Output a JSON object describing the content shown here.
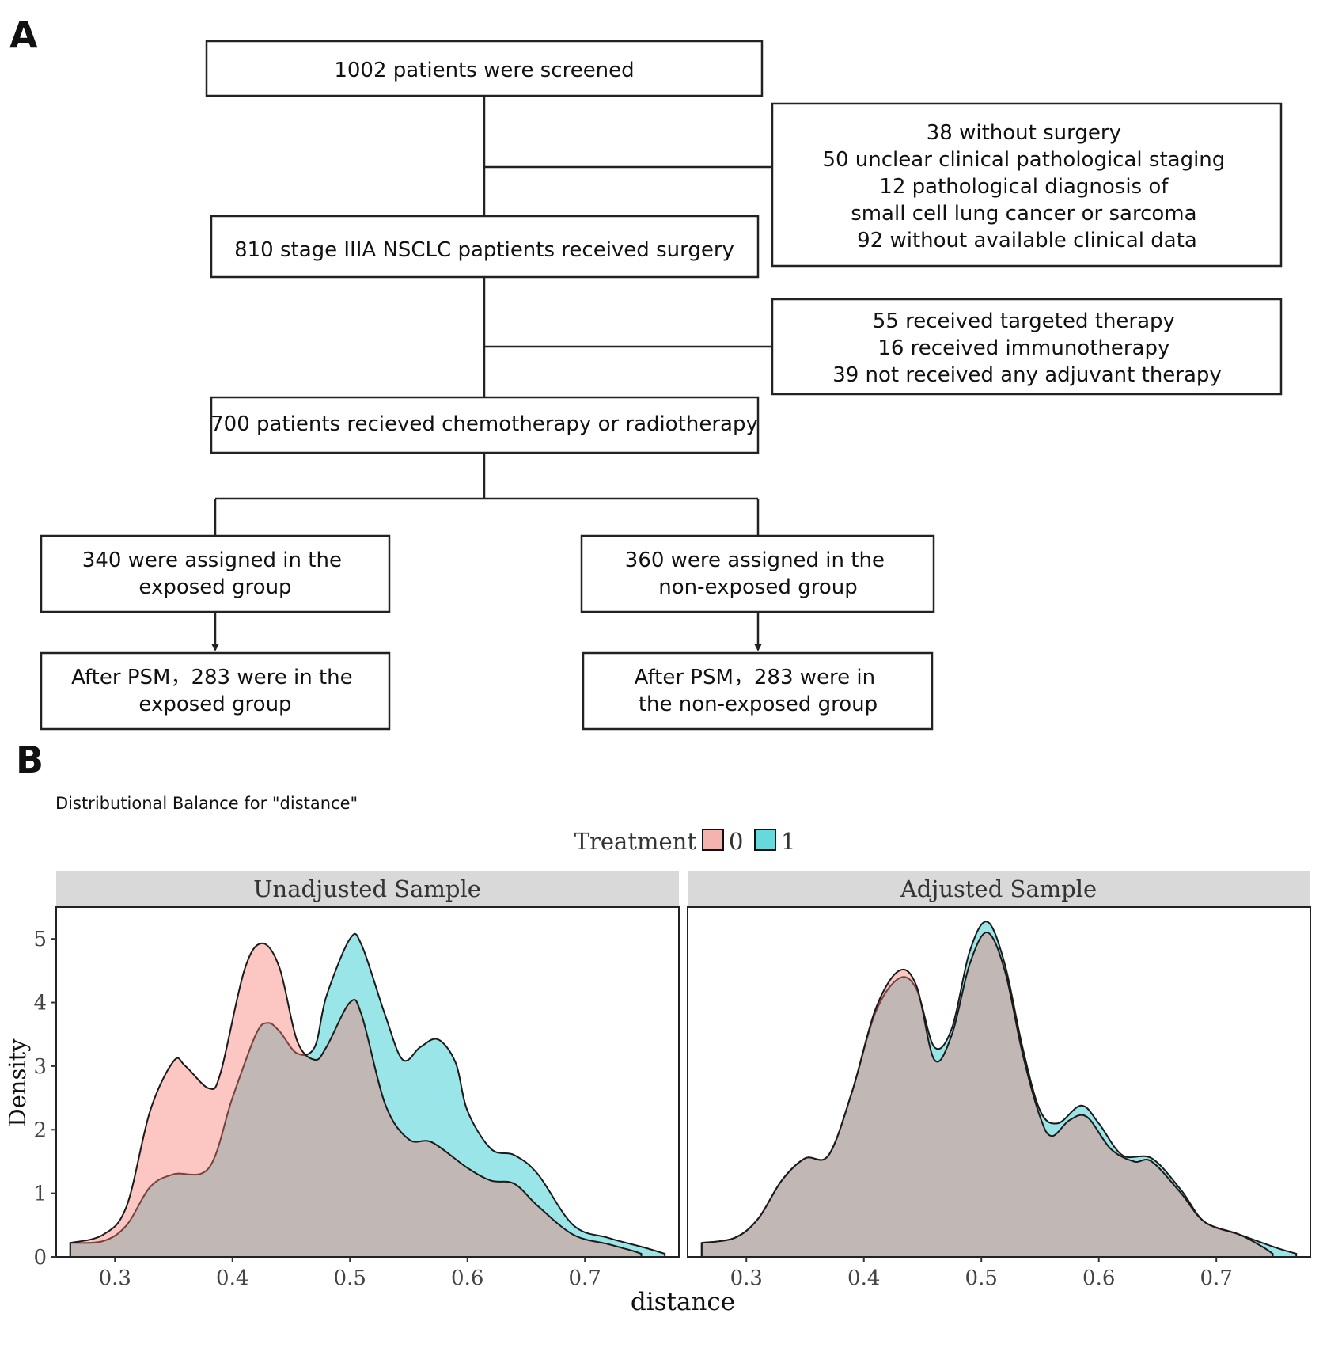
{
  "panel_a": {
    "letter": "A",
    "boxes": {
      "screened": [
        "1002 patients were screened"
      ],
      "excluded1": [
        "38 without surgery",
        "50 unclear clinical pathological staging",
        "12 pathological diagnosis of",
        "small cell lung cancer or sarcoma",
        "92 without available clinical data"
      ],
      "surgery": [
        "810 stage IIIA NSCLC paptients received surgery"
      ],
      "excluded2": [
        "55 received targeted therapy",
        "16 received immunotherapy",
        "39 not received any adjuvant therapy"
      ],
      "chemo": [
        "700 patients recieved chemotherapy or radiotherapy"
      ],
      "exposed": [
        "340 were assigned in the",
        "exposed group"
      ],
      "nonexposed": [
        "360 were assigned in the",
        "non-exposed group"
      ],
      "psm_exposed": [
        "After PSM，283 were in the",
        "exposed group"
      ],
      "psm_nonexposed": [
        "After PSM，283 were  in",
        "the non-exposed group"
      ]
    }
  },
  "panel_b": {
    "letter": "B",
    "plot_title": "Distributional Balance for \"distance\"",
    "legend_title": "Treatment",
    "legend_labels": [
      "0",
      "1"
    ]
  },
  "chart_data": {
    "type": "area",
    "title": "Distributional Balance for \"distance\"",
    "xlabel": "distance",
    "ylabel": "Density",
    "xlim": [
      0.25,
      0.78
    ],
    "ylim": [
      0,
      5.5
    ],
    "x_ticks": [
      0.3,
      0.4,
      0.5,
      0.6,
      0.7
    ],
    "y_ticks": [
      0,
      1,
      2,
      3,
      4,
      5
    ],
    "legend": {
      "title": "Treatment",
      "position": "top"
    },
    "colors": {
      "0": "#f8766d",
      "1": "#00bfc4",
      "overlap": "#7fb3b0"
    },
    "panels": [
      {
        "facet": "Unadjusted Sample",
        "series": [
          {
            "name": "0",
            "points": [
              [
                0.262,
                0.22
              ],
              [
                0.29,
                0.35
              ],
              [
                0.31,
                0.8
              ],
              [
                0.33,
                2.3
              ],
              [
                0.35,
                3.08
              ],
              [
                0.36,
                3.0
              ],
              [
                0.38,
                2.65
              ],
              [
                0.39,
                2.9
              ],
              [
                0.41,
                4.5
              ],
              [
                0.425,
                4.93
              ],
              [
                0.44,
                4.55
              ],
              [
                0.455,
                3.4
              ],
              [
                0.47,
                3.1
              ],
              [
                0.48,
                3.3
              ],
              [
                0.5,
                4.0
              ],
              [
                0.51,
                3.8
              ],
              [
                0.53,
                2.4
              ],
              [
                0.55,
                1.85
              ],
              [
                0.57,
                1.8
              ],
              [
                0.6,
                1.4
              ],
              [
                0.62,
                1.2
              ],
              [
                0.64,
                1.15
              ],
              [
                0.66,
                0.8
              ],
              [
                0.69,
                0.35
              ],
              [
                0.72,
                0.2
              ],
              [
                0.74,
                0.1
              ],
              [
                0.748,
                0.05
              ]
            ]
          },
          {
            "name": "1",
            "points": [
              [
                0.262,
                0.22
              ],
              [
                0.29,
                0.25
              ],
              [
                0.31,
                0.5
              ],
              [
                0.33,
                1.1
              ],
              [
                0.35,
                1.3
              ],
              [
                0.38,
                1.4
              ],
              [
                0.4,
                2.5
              ],
              [
                0.42,
                3.5
              ],
              [
                0.43,
                3.68
              ],
              [
                0.44,
                3.55
              ],
              [
                0.455,
                3.2
              ],
              [
                0.47,
                3.3
              ],
              [
                0.48,
                4.1
              ],
              [
                0.5,
                5.0
              ],
              [
                0.51,
                4.9
              ],
              [
                0.53,
                3.8
              ],
              [
                0.545,
                3.1
              ],
              [
                0.56,
                3.3
              ],
              [
                0.575,
                3.42
              ],
              [
                0.59,
                3.05
              ],
              [
                0.6,
                2.3
              ],
              [
                0.62,
                1.7
              ],
              [
                0.64,
                1.6
              ],
              [
                0.66,
                1.3
              ],
              [
                0.69,
                0.5
              ],
              [
                0.72,
                0.3
              ],
              [
                0.75,
                0.15
              ],
              [
                0.768,
                0.05
              ]
            ]
          }
        ]
      },
      {
        "facet": "Adjusted Sample",
        "series": [
          {
            "name": "0",
            "points": [
              [
                0.262,
                0.22
              ],
              [
                0.29,
                0.3
              ],
              [
                0.31,
                0.6
              ],
              [
                0.33,
                1.2
              ],
              [
                0.35,
                1.55
              ],
              [
                0.37,
                1.6
              ],
              [
                0.39,
                2.6
              ],
              [
                0.41,
                3.9
              ],
              [
                0.43,
                4.5
              ],
              [
                0.445,
                4.25
              ],
              [
                0.46,
                3.1
              ],
              [
                0.475,
                3.5
              ],
              [
                0.49,
                4.6
              ],
              [
                0.505,
                5.1
              ],
              [
                0.52,
                4.5
              ],
              [
                0.535,
                3.2
              ],
              [
                0.55,
                2.2
              ],
              [
                0.56,
                1.9
              ],
              [
                0.575,
                2.15
              ],
              [
                0.59,
                2.2
              ],
              [
                0.61,
                1.7
              ],
              [
                0.63,
                1.5
              ],
              [
                0.645,
                1.5
              ],
              [
                0.67,
                1.0
              ],
              [
                0.69,
                0.55
              ],
              [
                0.72,
                0.35
              ],
              [
                0.74,
                0.15
              ],
              [
                0.748,
                0.05
              ]
            ]
          },
          {
            "name": "1",
            "points": [
              [
                0.262,
                0.22
              ],
              [
                0.29,
                0.3
              ],
              [
                0.31,
                0.6
              ],
              [
                0.33,
                1.2
              ],
              [
                0.35,
                1.55
              ],
              [
                0.37,
                1.6
              ],
              [
                0.39,
                2.6
              ],
              [
                0.41,
                3.85
              ],
              [
                0.43,
                4.38
              ],
              [
                0.445,
                4.2
              ],
              [
                0.46,
                3.3
              ],
              [
                0.475,
                3.6
              ],
              [
                0.49,
                4.8
              ],
              [
                0.505,
                5.27
              ],
              [
                0.52,
                4.6
              ],
              [
                0.535,
                3.3
              ],
              [
                0.55,
                2.3
              ],
              [
                0.565,
                2.1
              ],
              [
                0.585,
                2.38
              ],
              [
                0.6,
                2.1
              ],
              [
                0.62,
                1.6
              ],
              [
                0.645,
                1.55
              ],
              [
                0.67,
                1.05
              ],
              [
                0.69,
                0.55
              ],
              [
                0.72,
                0.35
              ],
              [
                0.75,
                0.15
              ],
              [
                0.768,
                0.05
              ]
            ]
          }
        ]
      }
    ]
  }
}
